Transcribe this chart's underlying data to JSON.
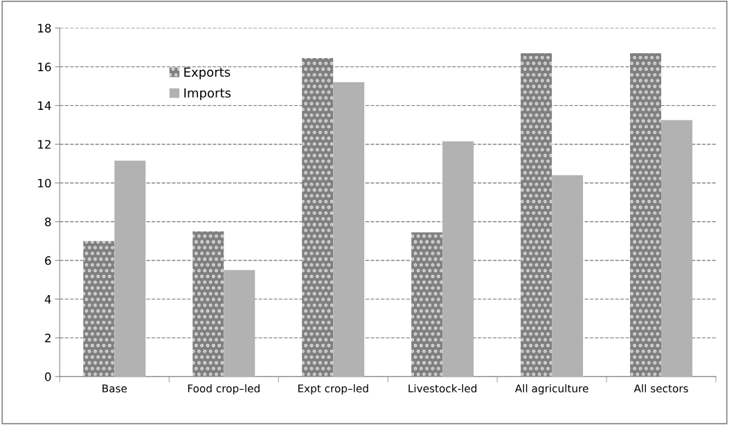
{
  "chart_data": {
    "type": "bar",
    "categories": [
      "Base",
      "Food crop–led",
      "Expt crop–led",
      "Livestock-led",
      "All agriculture",
      "All sectors"
    ],
    "series": [
      {
        "name": "Exports",
        "color": "#7f7f7f",
        "values": [
          7.0,
          7.5,
          16.45,
          7.45,
          16.7,
          16.7
        ]
      },
      {
        "name": "Imports",
        "color": "#b2b2b2",
        "values": [
          11.15,
          5.5,
          15.2,
          12.15,
          10.4,
          13.25
        ]
      }
    ],
    "ylim": [
      0,
      18
    ],
    "yticks": [
      0,
      2,
      4,
      6,
      8,
      10,
      12,
      14,
      16,
      18
    ],
    "grid": "y",
    "legend": "top left"
  }
}
